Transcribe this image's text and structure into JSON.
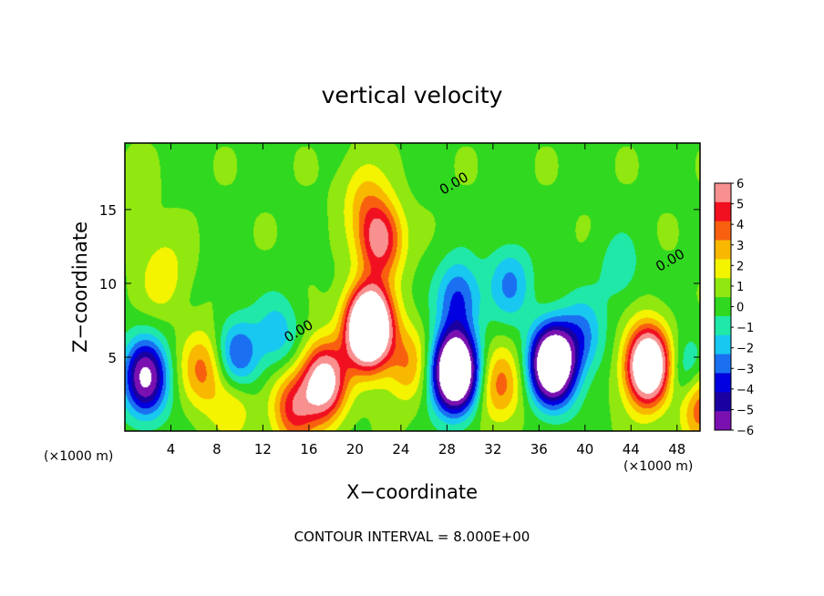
{
  "chart_data": {
    "type": "heatmap",
    "title": "vertical velocity",
    "xlabel": "X−coordinate",
    "ylabel": "Z−coordinate",
    "x_unit_left": "(×1000 m)",
    "x_unit_right": "(×1000 m)",
    "footer": "CONTOUR INTERVAL = 8.000E+00",
    "xlim": [
      0,
      50
    ],
    "ylim": [
      0,
      19.5
    ],
    "xticks": [
      4,
      8,
      12,
      16,
      20,
      24,
      28,
      32,
      36,
      40,
      44,
      48
    ],
    "yticks": [
      5,
      10,
      15
    ],
    "colorbar": {
      "min": -6,
      "max": 6,
      "labels": [
        "6",
        "5",
        "4",
        "3",
        "2",
        "1",
        "0",
        "−1",
        "−2",
        "−3",
        "−4",
        "−5",
        "−6"
      ]
    },
    "contour_labels": [
      {
        "text": "0.00",
        "x": 28.8,
        "y": 16.5
      },
      {
        "text": "0.00",
        "x": 15.3,
        "y": 6.5
      },
      {
        "text": "0.00",
        "x": 47.6,
        "y": 11.3
      }
    ],
    "features": [
      {
        "x": 1.8,
        "z": 3.6,
        "amp": -7.5
      },
      {
        "x": 6.8,
        "z": 4.2,
        "amp": 3.5
      },
      {
        "x": 9.5,
        "z": 2.2,
        "amp": 2.5
      },
      {
        "x": 9.8,
        "z": 4.9,
        "amp": -4.5
      },
      {
        "x": 13.3,
        "z": 6.5,
        "amp": -2.5
      },
      {
        "x": 14.6,
        "z": 1.6,
        "amp": 4.5
      },
      {
        "x": 17.3,
        "z": 3.3,
        "amp": 8
      },
      {
        "x": 21.2,
        "z": 7.0,
        "amp": 14
      },
      {
        "x": 22.2,
        "z": 13.0,
        "amp": 6
      },
      {
        "x": 20.7,
        "z": 16.0,
        "amp": 2
      },
      {
        "x": 24.6,
        "z": 4.6,
        "amp": 3
      },
      {
        "x": 28.7,
        "z": 4.0,
        "amp": -13
      },
      {
        "x": 29.0,
        "z": 9.0,
        "amp": -4
      },
      {
        "x": 32.6,
        "z": 3.1,
        "amp": 3.5
      },
      {
        "x": 33.5,
        "z": 10.0,
        "amp": -3
      },
      {
        "x": 37.2,
        "z": 4.5,
        "amp": -12
      },
      {
        "x": 39.8,
        "z": 6.4,
        "amp": -3
      },
      {
        "x": 45.5,
        "z": 4.4,
        "amp": 11
      },
      {
        "x": 48.8,
        "z": 3.6,
        "amp": -3.5
      },
      {
        "x": 49.8,
        "z": 2.0,
        "amp": 5
      },
      {
        "x": 43.0,
        "z": 11.0,
        "amp": -1.5
      },
      {
        "x": 3.3,
        "z": 10.5,
        "amp": 2
      },
      {
        "x": 0.5,
        "z": 15.5,
        "amp": 0.8
      }
    ]
  }
}
